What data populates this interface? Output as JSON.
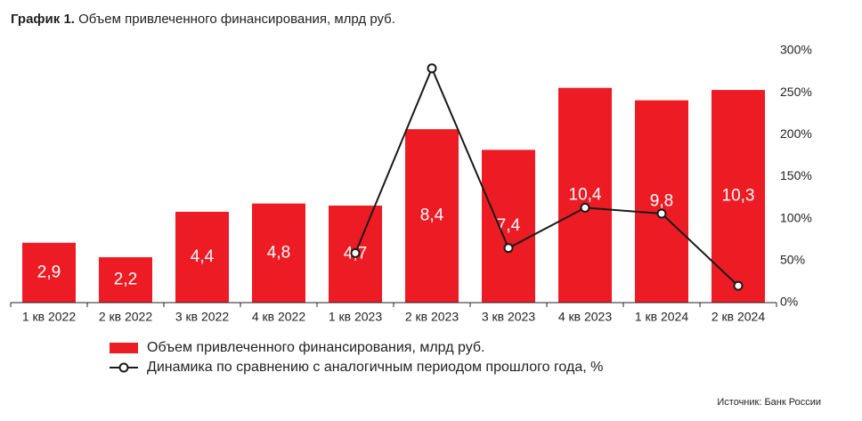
{
  "chart_data": {
    "type": "bar-line",
    "title_label": "График 1.",
    "title": "Объем привлеченного финансирования, млрд руб.",
    "source": "Источник: Банк России",
    "categories": [
      "1 кв 2022",
      "2 кв 2022",
      "3 кв 2022",
      "4 кв 2022",
      "1 кв 2023",
      "2 кв 2023",
      "3 кв 2023",
      "4 кв 2023",
      "1 кв 2024",
      "2 кв 2024"
    ],
    "ylim": [
      0,
      12.2
    ],
    "y2lim": [
      0,
      300
    ],
    "y2ticks": [
      {
        "value": 0,
        "label": "0%"
      },
      {
        "value": 50,
        "label": "50%"
      },
      {
        "value": 100,
        "label": "100%"
      },
      {
        "value": 150,
        "label": "150%"
      },
      {
        "value": 200,
        "label": "200%"
      },
      {
        "value": 250,
        "label": "250%"
      },
      {
        "value": 300,
        "label": "300%"
      }
    ],
    "series": [
      {
        "name": "Объем привлеченного финансирования, млрд руб.",
        "type": "bar",
        "color": "#ed1c24",
        "values": [
          2.9,
          2.2,
          4.4,
          4.8,
          4.7,
          8.4,
          7.4,
          10.4,
          9.8,
          10.3
        ],
        "value_labels": [
          "2,9",
          "2,2",
          "4,4",
          "4,8",
          "4,7",
          "8,4",
          "7,4",
          "10,4",
          "9,8",
          "10,3"
        ]
      },
      {
        "name": "Динамика по сравнению с аналогичным периодом прошлого года, %",
        "type": "line",
        "axis": "y2",
        "color": "#1a1a1a",
        "values": [
          null,
          null,
          null,
          null,
          59,
          279,
          65,
          113,
          106,
          20
        ]
      }
    ]
  }
}
